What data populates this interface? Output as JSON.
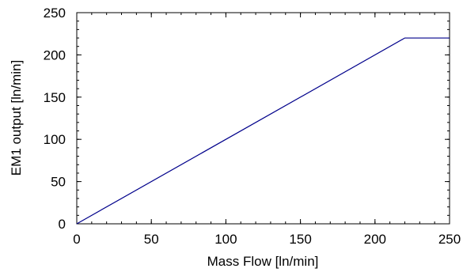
{
  "chart_data": {
    "type": "line",
    "title": "",
    "xlabel": "Mass Flow [ln/min]",
    "ylabel": "EM1 output [ln/min]",
    "xlim": [
      0,
      250
    ],
    "ylim": [
      0,
      250
    ],
    "x_ticks": [
      0,
      50,
      100,
      150,
      200,
      250
    ],
    "y_ticks": [
      0,
      50,
      100,
      150,
      200,
      250
    ],
    "x_minor_step": 10,
    "y_minor_step": 10,
    "grid": false,
    "series": [
      {
        "color": "#00008b",
        "x": [
          0,
          220,
          250
        ],
        "y": [
          0,
          220,
          220
        ]
      }
    ]
  }
}
